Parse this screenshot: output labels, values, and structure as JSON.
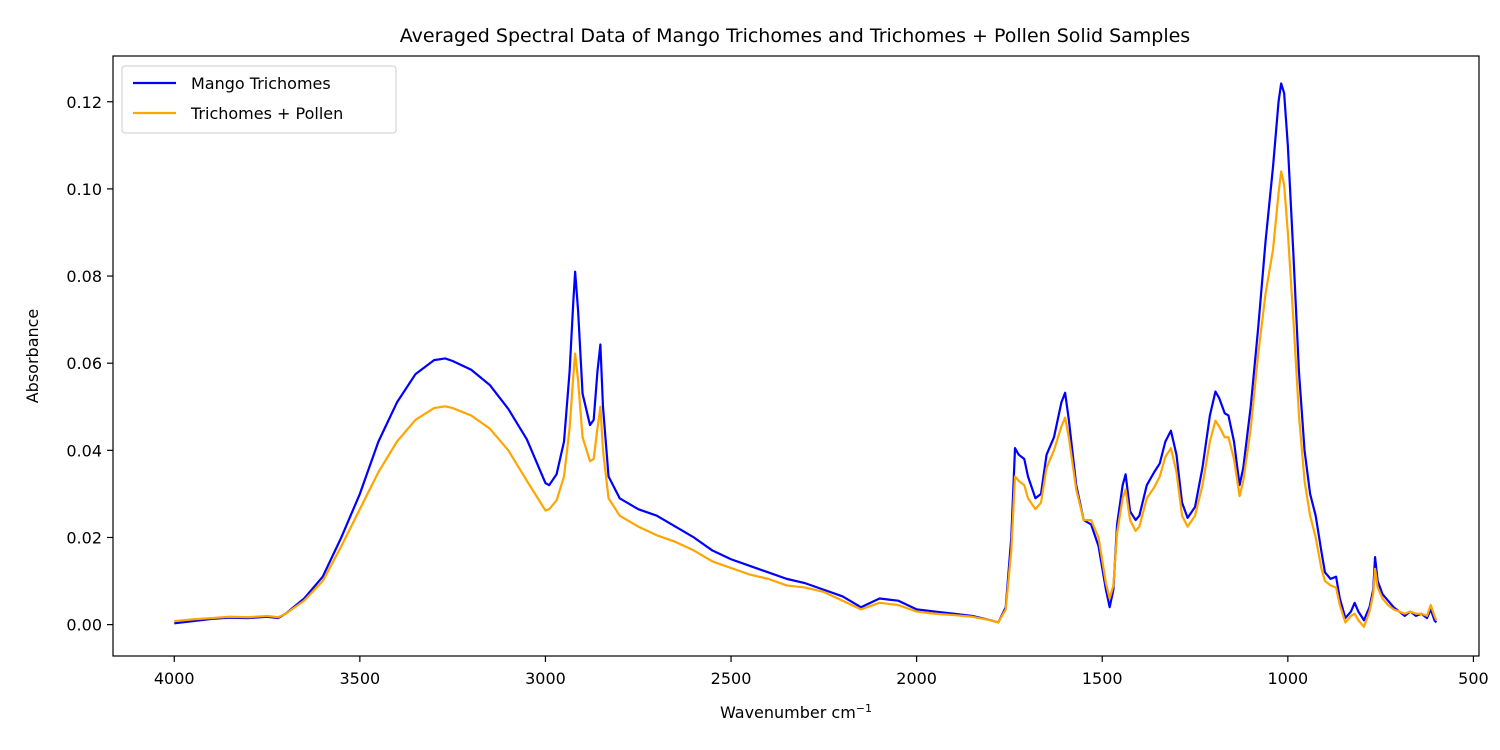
{
  "chart_data": {
    "type": "line",
    "title": "Averaged Spectral Data of Mango Trichomes and Trichomes + Pollen Solid Samples",
    "xlabel": "Wavenumber cm",
    "xlabel_sup": "−1",
    "ylabel": "Absorbance",
    "xlim": [
      4165,
      485
    ],
    "ylim": [
      -0.0072,
      0.1305
    ],
    "x_reversed": true,
    "grid": false,
    "legend_position": "top-left",
    "x_ticks": [
      4000,
      3500,
      3000,
      2500,
      2000,
      1500,
      1000,
      500
    ],
    "x_tick_labels": [
      "4000",
      "3500",
      "3000",
      "2500",
      "2000",
      "1500",
      "1000",
      "500"
    ],
    "y_ticks": [
      0.0,
      0.02,
      0.04,
      0.06,
      0.08,
      0.1,
      0.12
    ],
    "y_tick_labels": [
      "0.00",
      "0.02",
      "0.04",
      "0.06",
      "0.08",
      "0.10",
      "0.12"
    ],
    "series": [
      {
        "name": "Mango Trichomes",
        "color": "#0000ff",
        "points": [
          [
            4000,
            0.0003
          ],
          [
            3950,
            0.0008
          ],
          [
            3900,
            0.0013
          ],
          [
            3850,
            0.0016
          ],
          [
            3800,
            0.0015
          ],
          [
            3750,
            0.0018
          ],
          [
            3720,
            0.0015
          ],
          [
            3700,
            0.0025
          ],
          [
            3650,
            0.006
          ],
          [
            3600,
            0.011
          ],
          [
            3550,
            0.02
          ],
          [
            3500,
            0.03
          ],
          [
            3450,
            0.042
          ],
          [
            3400,
            0.051
          ],
          [
            3350,
            0.0575
          ],
          [
            3300,
            0.0607
          ],
          [
            3270,
            0.0611
          ],
          [
            3250,
            0.0605
          ],
          [
            3200,
            0.0585
          ],
          [
            3150,
            0.055
          ],
          [
            3100,
            0.0495
          ],
          [
            3050,
            0.0425
          ],
          [
            3000,
            0.0325
          ],
          [
            2990,
            0.032
          ],
          [
            2970,
            0.0345
          ],
          [
            2950,
            0.042
          ],
          [
            2935,
            0.058
          ],
          [
            2925,
            0.074
          ],
          [
            2920,
            0.081
          ],
          [
            2912,
            0.072
          ],
          [
            2900,
            0.053
          ],
          [
            2880,
            0.0458
          ],
          [
            2870,
            0.047
          ],
          [
            2860,
            0.058
          ],
          [
            2852,
            0.0643
          ],
          [
            2845,
            0.05
          ],
          [
            2830,
            0.034
          ],
          [
            2800,
            0.029
          ],
          [
            2750,
            0.0265
          ],
          [
            2700,
            0.025
          ],
          [
            2650,
            0.0225
          ],
          [
            2600,
            0.02
          ],
          [
            2550,
            0.017
          ],
          [
            2500,
            0.015
          ],
          [
            2450,
            0.0135
          ],
          [
            2400,
            0.012
          ],
          [
            2350,
            0.0105
          ],
          [
            2300,
            0.0095
          ],
          [
            2250,
            0.008
          ],
          [
            2200,
            0.0065
          ],
          [
            2150,
            0.004
          ],
          [
            2100,
            0.006
          ],
          [
            2050,
            0.0055
          ],
          [
            2000,
            0.0035
          ],
          [
            1950,
            0.003
          ],
          [
            1900,
            0.0025
          ],
          [
            1850,
            0.002
          ],
          [
            1800,
            0.001
          ],
          [
            1780,
            0.0005
          ],
          [
            1760,
            0.004
          ],
          [
            1745,
            0.02
          ],
          [
            1735,
            0.0405
          ],
          [
            1725,
            0.039
          ],
          [
            1710,
            0.038
          ],
          [
            1700,
            0.034
          ],
          [
            1680,
            0.029
          ],
          [
            1665,
            0.03
          ],
          [
            1650,
            0.039
          ],
          [
            1630,
            0.043
          ],
          [
            1610,
            0.051
          ],
          [
            1600,
            0.0532
          ],
          [
            1590,
            0.047
          ],
          [
            1570,
            0.032
          ],
          [
            1550,
            0.024
          ],
          [
            1530,
            0.023
          ],
          [
            1510,
            0.018
          ],
          [
            1490,
            0.008
          ],
          [
            1480,
            0.004
          ],
          [
            1470,
            0.008
          ],
          [
            1460,
            0.023
          ],
          [
            1445,
            0.032
          ],
          [
            1437,
            0.0345
          ],
          [
            1425,
            0.026
          ],
          [
            1410,
            0.024
          ],
          [
            1400,
            0.025
          ],
          [
            1380,
            0.032
          ],
          [
            1360,
            0.035
          ],
          [
            1345,
            0.037
          ],
          [
            1330,
            0.042
          ],
          [
            1315,
            0.0445
          ],
          [
            1300,
            0.039
          ],
          [
            1285,
            0.028
          ],
          [
            1270,
            0.0245
          ],
          [
            1250,
            0.027
          ],
          [
            1230,
            0.036
          ],
          [
            1210,
            0.048
          ],
          [
            1195,
            0.0535
          ],
          [
            1185,
            0.052
          ],
          [
            1170,
            0.0485
          ],
          [
            1160,
            0.048
          ],
          [
            1145,
            0.042
          ],
          [
            1130,
            0.032
          ],
          [
            1120,
            0.036
          ],
          [
            1100,
            0.05
          ],
          [
            1080,
            0.068
          ],
          [
            1060,
            0.088
          ],
          [
            1040,
            0.105
          ],
          [
            1025,
            0.12
          ],
          [
            1018,
            0.1242
          ],
          [
            1010,
            0.122
          ],
          [
            1000,
            0.11
          ],
          [
            985,
            0.085
          ],
          [
            970,
            0.058
          ],
          [
            955,
            0.04
          ],
          [
            940,
            0.03
          ],
          [
            925,
            0.025
          ],
          [
            910,
            0.017
          ],
          [
            900,
            0.012
          ],
          [
            885,
            0.0105
          ],
          [
            870,
            0.011
          ],
          [
            860,
            0.006
          ],
          [
            845,
            0.0015
          ],
          [
            830,
            0.003
          ],
          [
            820,
            0.005
          ],
          [
            810,
            0.003
          ],
          [
            795,
            0.001
          ],
          [
            780,
            0.004
          ],
          [
            770,
            0.008
          ],
          [
            765,
            0.0155
          ],
          [
            758,
            0.01
          ],
          [
            745,
            0.007
          ],
          [
            730,
            0.0055
          ],
          [
            715,
            0.004
          ],
          [
            700,
            0.003
          ],
          [
            685,
            0.002
          ],
          [
            670,
            0.003
          ],
          [
            655,
            0.002
          ],
          [
            640,
            0.0025
          ],
          [
            625,
            0.0015
          ],
          [
            615,
            0.0035
          ],
          [
            605,
            0.001
          ],
          [
            600,
            0.0005
          ]
        ]
      },
      {
        "name": "Trichomes + Pollen",
        "color": "#ffa500",
        "points": [
          [
            4000,
            0.0008
          ],
          [
            3950,
            0.0012
          ],
          [
            3900,
            0.0015
          ],
          [
            3850,
            0.0018
          ],
          [
            3800,
            0.0017
          ],
          [
            3750,
            0.002
          ],
          [
            3720,
            0.0017
          ],
          [
            3700,
            0.0025
          ],
          [
            3650,
            0.0055
          ],
          [
            3600,
            0.01
          ],
          [
            3550,
            0.018
          ],
          [
            3500,
            0.0265
          ],
          [
            3450,
            0.035
          ],
          [
            3400,
            0.042
          ],
          [
            3350,
            0.047
          ],
          [
            3300,
            0.0497
          ],
          [
            3270,
            0.0501
          ],
          [
            3250,
            0.0497
          ],
          [
            3200,
            0.048
          ],
          [
            3150,
            0.045
          ],
          [
            3100,
            0.04
          ],
          [
            3050,
            0.033
          ],
          [
            3000,
            0.0262
          ],
          [
            2990,
            0.0265
          ],
          [
            2970,
            0.0285
          ],
          [
            2950,
            0.034
          ],
          [
            2935,
            0.045
          ],
          [
            2925,
            0.057
          ],
          [
            2920,
            0.0622
          ],
          [
            2912,
            0.056
          ],
          [
            2900,
            0.043
          ],
          [
            2880,
            0.0375
          ],
          [
            2870,
            0.038
          ],
          [
            2860,
            0.045
          ],
          [
            2852,
            0.05
          ],
          [
            2845,
            0.04
          ],
          [
            2830,
            0.029
          ],
          [
            2800,
            0.025
          ],
          [
            2750,
            0.0225
          ],
          [
            2700,
            0.0205
          ],
          [
            2650,
            0.019
          ],
          [
            2600,
            0.017
          ],
          [
            2550,
            0.0145
          ],
          [
            2500,
            0.013
          ],
          [
            2450,
            0.0115
          ],
          [
            2400,
            0.0105
          ],
          [
            2350,
            0.009
          ],
          [
            2300,
            0.0085
          ],
          [
            2250,
            0.0075
          ],
          [
            2200,
            0.0055
          ],
          [
            2150,
            0.0035
          ],
          [
            2100,
            0.005
          ],
          [
            2050,
            0.0045
          ],
          [
            2000,
            0.003
          ],
          [
            1950,
            0.0025
          ],
          [
            1900,
            0.0022
          ],
          [
            1850,
            0.0018
          ],
          [
            1800,
            0.001
          ],
          [
            1780,
            0.0005
          ],
          [
            1760,
            0.0035
          ],
          [
            1745,
            0.017
          ],
          [
            1735,
            0.034
          ],
          [
            1725,
            0.033
          ],
          [
            1710,
            0.032
          ],
          [
            1700,
            0.029
          ],
          [
            1680,
            0.0265
          ],
          [
            1665,
            0.028
          ],
          [
            1650,
            0.036
          ],
          [
            1630,
            0.04
          ],
          [
            1610,
            0.0455
          ],
          [
            1600,
            0.0475
          ],
          [
            1590,
            0.043
          ],
          [
            1570,
            0.031
          ],
          [
            1550,
            0.024
          ],
          [
            1530,
            0.024
          ],
          [
            1510,
            0.02
          ],
          [
            1490,
            0.0095
          ],
          [
            1480,
            0.006
          ],
          [
            1470,
            0.009
          ],
          [
            1460,
            0.021
          ],
          [
            1445,
            0.029
          ],
          [
            1437,
            0.031
          ],
          [
            1425,
            0.024
          ],
          [
            1410,
            0.0215
          ],
          [
            1400,
            0.0225
          ],
          [
            1380,
            0.029
          ],
          [
            1360,
            0.0315
          ],
          [
            1345,
            0.034
          ],
          [
            1330,
            0.0385
          ],
          [
            1315,
            0.0405
          ],
          [
            1300,
            0.035
          ],
          [
            1285,
            0.025
          ],
          [
            1270,
            0.0225
          ],
          [
            1250,
            0.025
          ],
          [
            1230,
            0.032
          ],
          [
            1210,
            0.042
          ],
          [
            1195,
            0.0468
          ],
          [
            1185,
            0.0455
          ],
          [
            1170,
            0.043
          ],
          [
            1160,
            0.043
          ],
          [
            1145,
            0.038
          ],
          [
            1130,
            0.0295
          ],
          [
            1120,
            0.033
          ],
          [
            1100,
            0.045
          ],
          [
            1080,
            0.062
          ],
          [
            1060,
            0.076
          ],
          [
            1040,
            0.086
          ],
          [
            1025,
            0.099
          ],
          [
            1018,
            0.104
          ],
          [
            1010,
            0.101
          ],
          [
            1000,
            0.09
          ],
          [
            985,
            0.07
          ],
          [
            970,
            0.048
          ],
          [
            955,
            0.033
          ],
          [
            940,
            0.025
          ],
          [
            925,
            0.02
          ],
          [
            910,
            0.013
          ],
          [
            900,
            0.01
          ],
          [
            885,
            0.009
          ],
          [
            870,
            0.0085
          ],
          [
            860,
            0.0045
          ],
          [
            845,
            0.0005
          ],
          [
            830,
            0.002
          ],
          [
            820,
            0.0025
          ],
          [
            810,
            0.001
          ],
          [
            795,
            -0.0005
          ],
          [
            780,
            0.003
          ],
          [
            770,
            0.007
          ],
          [
            765,
            0.0128
          ],
          [
            758,
            0.0085
          ],
          [
            745,
            0.006
          ],
          [
            730,
            0.0045
          ],
          [
            715,
            0.0035
          ],
          [
            700,
            0.003
          ],
          [
            685,
            0.0025
          ],
          [
            670,
            0.003
          ],
          [
            655,
            0.0025
          ],
          [
            640,
            0.0025
          ],
          [
            625,
            0.002
          ],
          [
            615,
            0.0045
          ],
          [
            605,
            0.002
          ],
          [
            600,
            0.001
          ]
        ]
      }
    ]
  }
}
